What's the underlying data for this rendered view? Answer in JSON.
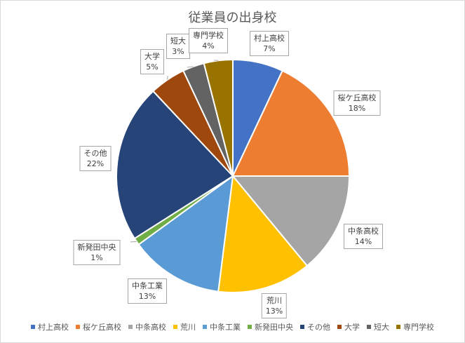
{
  "chart_data": {
    "type": "pie",
    "title": "従業員の出身校",
    "legend_position": "bottom",
    "categories": [
      "村上高校",
      "桜ケ丘高校",
      "中条高校",
      "荒川",
      "中条工業",
      "新発田中央",
      "その他",
      "大学",
      "短大",
      "専門学校"
    ],
    "values": [
      7,
      18,
      14,
      13,
      13,
      1,
      22,
      5,
      3,
      4
    ],
    "value_labels": [
      "7%",
      "18%",
      "14%",
      "13%",
      "13%",
      "1%",
      "22%",
      "5%",
      "3%",
      "4%"
    ],
    "colors": [
      "#4472C4",
      "#ED7D31",
      "#A5A5A5",
      "#FFC000",
      "#5B9BD5",
      "#70AD47",
      "#264478",
      "#9E480E",
      "#636363",
      "#997300"
    ]
  }
}
